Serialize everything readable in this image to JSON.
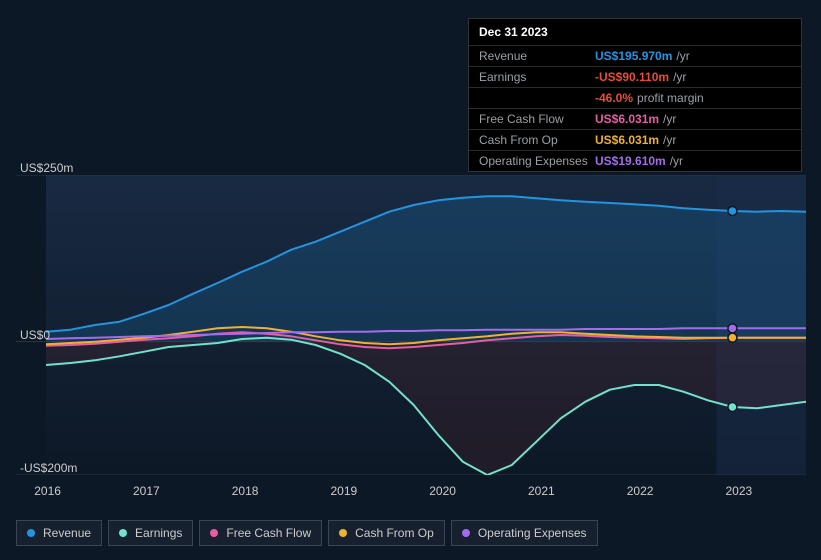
{
  "tooltip": {
    "date": "Dec 31 2023",
    "rows": [
      {
        "label": "Revenue",
        "value": "US$195.970m",
        "unit": "/yr",
        "color": "#2394df"
      },
      {
        "label": "Earnings",
        "value": "-US$90.110m",
        "unit": "/yr",
        "color": "#e74c3c"
      },
      {
        "label": "",
        "value": "-46.0%",
        "unit": "profit margin",
        "color": "#e74c3c"
      },
      {
        "label": "Free Cash Flow",
        "value": "US$6.031m",
        "unit": "/yr",
        "color": "#e55ea2"
      },
      {
        "label": "Cash From Op",
        "value": "US$6.031m",
        "unit": "/yr",
        "color": "#eeb132"
      },
      {
        "label": "Operating Expenses",
        "value": "US$19.610m",
        "unit": "/yr",
        "color": "#a46ced"
      }
    ]
  },
  "chart": {
    "type": "line-area",
    "background_color": "#0d1826",
    "plot_bg": "#182435",
    "grid_color": "#2a3545",
    "text_color": "#cccccc",
    "label_fontsize": 12,
    "y_axis": {
      "min": -200,
      "max": 250,
      "ticks": [
        {
          "v": 250,
          "label": "US$250m"
        },
        {
          "v": 0,
          "label": "US$0"
        },
        {
          "v": -200,
          "label": "-US$200m"
        }
      ]
    },
    "x_axis": {
      "labels": [
        "2016",
        "2017",
        "2018",
        "2019",
        "2020",
        "2021",
        "2022",
        "2023"
      ],
      "positions": [
        0.04,
        0.165,
        0.29,
        0.415,
        0.54,
        0.665,
        0.79,
        0.915
      ]
    },
    "highlight_x": 0.915,
    "series": [
      {
        "name": "Revenue",
        "color": "#2394df",
        "line_width": 2,
        "fill_opacity": 0.18,
        "fill_to_zero": true,
        "data": [
          15,
          18,
          25,
          30,
          42,
          55,
          72,
          88,
          105,
          120,
          138,
          150,
          165,
          180,
          195,
          205,
          212,
          216,
          218,
          218,
          215,
          212,
          210,
          208,
          206,
          204,
          200,
          198,
          196,
          195,
          196,
          195
        ]
      },
      {
        "name": "Earnings",
        "color": "#71e2cb",
        "line_width": 2,
        "fill_opacity": 0.15,
        "fill_to_zero": true,
        "fill_color": "#8b2c2c",
        "data": [
          -35,
          -32,
          -28,
          -22,
          -15,
          -8,
          -5,
          -2,
          4,
          6,
          3,
          -5,
          -18,
          -35,
          -60,
          -95,
          -140,
          -180,
          -200,
          -185,
          -150,
          -115,
          -90,
          -72,
          -65,
          -65,
          -75,
          -88,
          -98,
          -100,
          -95,
          -90
        ]
      },
      {
        "name": "Free Cash Flow",
        "color": "#e55ea2",
        "line_width": 2,
        "fill_opacity": 0,
        "data": [
          -6,
          -5,
          -3,
          0,
          3,
          5,
          8,
          12,
          14,
          12,
          8,
          2,
          -4,
          -8,
          -10,
          -8,
          -5,
          -2,
          2,
          5,
          8,
          10,
          9,
          7,
          6,
          5,
          4,
          5,
          6,
          6,
          6,
          6
        ]
      },
      {
        "name": "Cash From Op",
        "color": "#eeb132",
        "line_width": 2,
        "fill_opacity": 0,
        "data": [
          -4,
          -2,
          0,
          3,
          6,
          10,
          15,
          20,
          22,
          20,
          15,
          8,
          2,
          -2,
          -4,
          -2,
          2,
          5,
          8,
          12,
          14,
          14,
          12,
          10,
          8,
          7,
          6,
          6,
          6,
          6,
          6,
          6
        ]
      },
      {
        "name": "Operating Expenses",
        "color": "#a46ced",
        "line_width": 2,
        "fill_opacity": 0,
        "data": [
          4,
          5,
          6,
          7,
          8,
          9,
          10,
          11,
          12,
          13,
          14,
          14,
          15,
          15,
          16,
          16,
          17,
          17,
          18,
          18,
          18,
          18,
          19,
          19,
          19,
          19,
          20,
          20,
          20,
          20,
          20,
          20
        ]
      }
    ]
  },
  "legend": [
    {
      "label": "Revenue",
      "color": "#2394df"
    },
    {
      "label": "Earnings",
      "color": "#71e2cb"
    },
    {
      "label": "Free Cash Flow",
      "color": "#e55ea2"
    },
    {
      "label": "Cash From Op",
      "color": "#eeb132"
    },
    {
      "label": "Operating Expenses",
      "color": "#a46ced"
    }
  ]
}
